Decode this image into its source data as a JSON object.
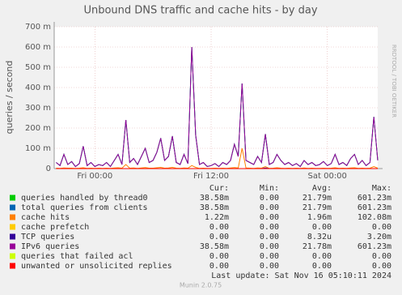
{
  "chart_data": {
    "type": "line",
    "title": "Unbound DNS traffic and cache hits - by day",
    "y_label": "queries / second",
    "side_note": "RRDTOOL / TOBI OETIKER",
    "x": [
      -4,
      -3.6,
      -3.2,
      -2.8,
      -2.4,
      -2,
      -1.6,
      -1.2,
      -0.8,
      -0.4,
      0,
      0.4,
      0.8,
      1.2,
      1.6,
      2,
      2.4,
      2.8,
      3.2,
      3.6,
      4,
      4.4,
      4.8,
      5.2,
      5.6,
      6,
      6.4,
      6.8,
      7.2,
      7.6,
      8,
      8.4,
      8.8,
      9.2,
      9.6,
      10,
      10.4,
      10.8,
      11.2,
      11.6,
      12,
      12.4,
      12.8,
      13.2,
      13.6,
      14,
      14.4,
      14.8,
      15.2,
      15.6,
      16,
      16.4,
      16.8,
      17.2,
      17.6,
      18,
      18.4,
      18.8,
      19.2,
      19.6,
      20,
      20.4,
      20.8,
      21.2,
      21.6,
      22,
      22.4,
      22.8,
      23.2,
      23.6,
      24,
      24.4,
      24.8,
      25.2,
      25.6,
      26,
      26.4,
      26.8,
      27.2,
      27.6,
      28,
      28.4,
      28.8,
      29.2
    ],
    "xlim": [
      -4.2,
      29.2
    ],
    "xticks": [
      {
        "value": 0,
        "label": "Fri 00:00"
      },
      {
        "value": 12,
        "label": "Fri 12:00"
      },
      {
        "value": 24,
        "label": "Sat 00:00"
      }
    ],
    "ylim": [
      0,
      700
    ],
    "yticks": [
      {
        "value": 0,
        "label": "0"
      },
      {
        "value": 100,
        "label": "100 m"
      },
      {
        "value": 200,
        "label": "200 m"
      },
      {
        "value": 300,
        "label": "300 m"
      },
      {
        "value": 400,
        "label": "400 m"
      },
      {
        "value": 500,
        "label": "500 m"
      },
      {
        "value": 600,
        "label": "600 m"
      },
      {
        "value": 700,
        "label": "700 m"
      }
    ],
    "grid": true,
    "stat_headers": [
      "Cur:",
      "Min:",
      "Avg:",
      "Max:"
    ],
    "series": [
      {
        "name": "queries handled by thread0",
        "color": "#00cc00",
        "cur": "38.58m",
        "min": "0.00",
        "avg": "21.79m",
        "max": "601.23m",
        "values": [
          30,
          15,
          70,
          20,
          35,
          10,
          25,
          110,
          15,
          30,
          10,
          20,
          15,
          30,
          10,
          40,
          70,
          20,
          240,
          30,
          50,
          20,
          60,
          100,
          30,
          40,
          80,
          150,
          40,
          60,
          160,
          30,
          20,
          70,
          25,
          600,
          165,
          20,
          30,
          10,
          15,
          25,
          10,
          30,
          20,
          40,
          120,
          60,
          420,
          40,
          30,
          20,
          60,
          30,
          170,
          20,
          30,
          70,
          40,
          20,
          30,
          15,
          25,
          10,
          40,
          20,
          30,
          15,
          20,
          35,
          15,
          25,
          70,
          20,
          30,
          15,
          50,
          70,
          20,
          40,
          15,
          30,
          255,
          40
        ]
      },
      {
        "name": "total queries from clients",
        "color": "#0066b3",
        "cur": "38.58m",
        "min": "0.00",
        "avg": "21.79m",
        "max": "601.23m",
        "values": [
          30,
          15,
          70,
          20,
          35,
          10,
          25,
          110,
          15,
          30,
          10,
          20,
          15,
          30,
          10,
          40,
          70,
          20,
          240,
          30,
          50,
          20,
          60,
          100,
          30,
          40,
          80,
          150,
          40,
          60,
          160,
          30,
          20,
          70,
          25,
          600,
          165,
          20,
          30,
          10,
          15,
          25,
          10,
          30,
          20,
          40,
          120,
          60,
          420,
          40,
          30,
          20,
          60,
          30,
          170,
          20,
          30,
          70,
          40,
          20,
          30,
          15,
          25,
          10,
          40,
          20,
          30,
          15,
          20,
          35,
          15,
          25,
          70,
          20,
          30,
          15,
          50,
          70,
          20,
          40,
          15,
          30,
          255,
          40
        ]
      },
      {
        "name": "cache hits",
        "color": "#ff8000",
        "cur": "1.22m",
        "min": "0.00",
        "avg": "1.96m",
        "max": "102.08m",
        "values": [
          2,
          1,
          3,
          2,
          2,
          1,
          2,
          4,
          1,
          2,
          1,
          2,
          1,
          2,
          1,
          3,
          4,
          2,
          20,
          2,
          3,
          1,
          3,
          5,
          2,
          2,
          4,
          6,
          2,
          3,
          6,
          2,
          1,
          3,
          2,
          15,
          6,
          1,
          2,
          1,
          1,
          2,
          1,
          2,
          1,
          3,
          5,
          3,
          100,
          3,
          2,
          1,
          3,
          2,
          10,
          1,
          2,
          4,
          2,
          1,
          2,
          1,
          2,
          1,
          3,
          1,
          2,
          1,
          1,
          2,
          1,
          2,
          4,
          1,
          2,
          1,
          3,
          4,
          1,
          2,
          1,
          2,
          10,
          2
        ]
      },
      {
        "name": "cache prefetch",
        "color": "#ffcc00",
        "cur": "0.00",
        "min": "0.00",
        "avg": "0.00",
        "max": "0.00",
        "values": [
          0,
          0,
          0,
          0,
          0,
          0,
          0,
          0,
          0,
          0,
          0,
          0,
          0,
          0,
          0,
          0,
          0,
          0,
          0,
          0,
          0,
          0,
          0,
          0,
          0,
          0,
          0,
          0,
          0,
          0,
          0,
          0,
          0,
          0,
          0,
          0,
          0,
          0,
          0,
          0,
          0,
          0,
          0,
          0,
          0,
          0,
          0,
          0,
          0,
          0,
          0,
          0,
          0,
          0,
          0,
          0,
          0,
          0,
          0,
          0,
          0,
          0,
          0,
          0,
          0,
          0,
          0,
          0,
          0,
          0,
          0,
          0,
          0,
          0,
          0,
          0,
          0,
          0,
          0,
          0,
          0,
          0,
          0,
          0
        ]
      },
      {
        "name": "TCP queries",
        "color": "#330099",
        "cur": "0.00",
        "min": "0.00",
        "avg": "8.32u",
        "max": "3.20m",
        "values": [
          0,
          0,
          0,
          0,
          0,
          0,
          0,
          0,
          0,
          0,
          0,
          0,
          0,
          0,
          0,
          0,
          0,
          0,
          0,
          0,
          0,
          0,
          0,
          0,
          0,
          0,
          0,
          0,
          0,
          0,
          0,
          0,
          0,
          0,
          0,
          0,
          0,
          0,
          0,
          0,
          0,
          0,
          0,
          0,
          0,
          0,
          0,
          0,
          0,
          0,
          0,
          0,
          0,
          0,
          3,
          0,
          0,
          0,
          0,
          0,
          0,
          0,
          0,
          0,
          0,
          0,
          0,
          0,
          0,
          0,
          0,
          0,
          0,
          0,
          0,
          0,
          0,
          0,
          0,
          0,
          0,
          0,
          0,
          0
        ]
      },
      {
        "name": "IPv6 queries",
        "color": "#990099",
        "cur": "38.58m",
        "min": "0.00",
        "avg": "21.78m",
        "max": "601.23m",
        "values": [
          30,
          15,
          70,
          20,
          35,
          10,
          25,
          110,
          15,
          30,
          10,
          20,
          15,
          30,
          10,
          40,
          70,
          20,
          240,
          30,
          50,
          20,
          60,
          100,
          30,
          40,
          80,
          150,
          40,
          60,
          160,
          30,
          20,
          70,
          25,
          600,
          165,
          20,
          30,
          10,
          15,
          25,
          10,
          30,
          20,
          40,
          120,
          60,
          420,
          40,
          30,
          20,
          60,
          30,
          170,
          20,
          30,
          70,
          40,
          20,
          30,
          15,
          25,
          10,
          40,
          20,
          30,
          15,
          20,
          35,
          15,
          25,
          70,
          20,
          30,
          15,
          50,
          70,
          20,
          40,
          15,
          30,
          255,
          40
        ]
      },
      {
        "name": "queries that failed acl",
        "color": "#ccff00",
        "cur": "0.00",
        "min": "0.00",
        "avg": "0.00",
        "max": "0.00",
        "values": [
          0,
          0,
          0,
          0,
          0,
          0,
          0,
          0,
          0,
          0,
          0,
          0,
          0,
          0,
          0,
          0,
          0,
          0,
          0,
          0,
          0,
          0,
          0,
          0,
          0,
          0,
          0,
          0,
          0,
          0,
          0,
          0,
          0,
          0,
          0,
          0,
          0,
          0,
          0,
          0,
          0,
          0,
          0,
          0,
          0,
          0,
          0,
          0,
          0,
          0,
          0,
          0,
          0,
          0,
          0,
          0,
          0,
          0,
          0,
          0,
          0,
          0,
          0,
          0,
          0,
          0,
          0,
          0,
          0,
          0,
          0,
          0,
          0,
          0,
          0,
          0,
          0,
          0,
          0,
          0,
          0,
          0,
          0,
          0
        ]
      },
      {
        "name": "unwanted or unsolicited replies",
        "color": "#ff0000",
        "cur": "0.00",
        "min": "0.00",
        "avg": "0.00",
        "max": "0.00",
        "values": [
          0,
          0,
          0,
          0,
          0,
          0,
          0,
          0,
          0,
          0,
          0,
          0,
          0,
          0,
          0,
          0,
          0,
          0,
          0,
          0,
          0,
          0,
          0,
          0,
          0,
          0,
          0,
          0,
          0,
          0,
          0,
          0,
          0,
          0,
          0,
          0,
          0,
          0,
          0,
          0,
          0,
          0,
          0,
          0,
          0,
          0,
          0,
          0,
          0,
          0,
          0,
          0,
          0,
          0,
          0,
          0,
          0,
          0,
          0,
          0,
          0,
          0,
          0,
          0,
          0,
          0,
          0,
          0,
          0,
          0,
          0,
          0,
          0,
          0,
          0,
          0,
          0,
          0,
          0,
          0,
          0,
          0,
          0,
          0
        ]
      }
    ],
    "last_update": "Last update: Sat Nov 16 05:10:11 2024",
    "footer": "Munin 2.0.75"
  }
}
